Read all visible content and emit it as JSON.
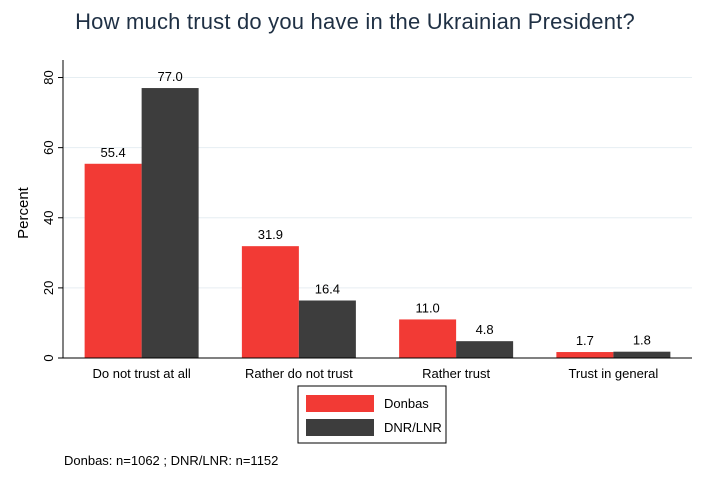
{
  "chart_data": {
    "type": "bar",
    "title": "How much trust do you have in the Ukrainian President?",
    "xlabel": "",
    "ylabel": "Percent",
    "ylim": [
      0,
      85
    ],
    "yticks": [
      0,
      20,
      40,
      60,
      80
    ],
    "grid": true,
    "legend_position": "bottom-center",
    "categories": [
      "Do not trust at all",
      "Rather do not trust",
      "Rather trust",
      "Trust in general"
    ],
    "series": [
      {
        "name": "Donbas",
        "color": "#f23a35",
        "values": [
          55.4,
          31.9,
          11.0,
          1.7
        ],
        "labels": [
          "55.4",
          "31.9",
          "11.0",
          "1.7"
        ]
      },
      {
        "name": "DNR/LNR",
        "color": "#3d3d3d",
        "values": [
          77.0,
          16.4,
          4.8,
          1.8
        ],
        "labels": [
          "77.0",
          "16.4",
          "4.8",
          "1.8"
        ]
      }
    ],
    "note": "Donbas: n=1062 ; DNR/LNR: n=1152"
  }
}
